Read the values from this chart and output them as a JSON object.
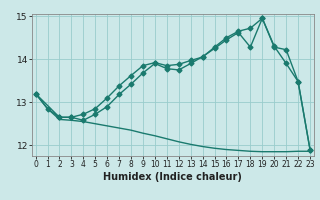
{
  "title": "",
  "xlabel": "Humidex (Indice chaleur)",
  "bg_color": "#cce8e8",
  "line_color": "#1a7a6e",
  "grid_color": "#99cccc",
  "xticks": [
    0,
    1,
    2,
    3,
    4,
    5,
    6,
    7,
    8,
    9,
    10,
    11,
    12,
    13,
    14,
    15,
    16,
    17,
    18,
    19,
    20,
    21,
    22,
    23
  ],
  "yticks": [
    12,
    13,
    14,
    15
  ],
  "ylim": [
    11.75,
    15.05
  ],
  "xlim": [
    -0.3,
    23.3
  ],
  "line1_x": [
    0,
    1,
    2,
    3,
    4,
    5,
    6,
    7,
    8,
    9,
    10,
    11,
    12,
    13,
    14,
    15,
    16,
    17,
    18,
    19,
    20,
    21,
    22,
    23
  ],
  "line1_y": [
    13.2,
    12.85,
    12.6,
    12.58,
    12.55,
    12.5,
    12.45,
    12.4,
    12.35,
    12.28,
    12.22,
    12.15,
    12.08,
    12.02,
    11.97,
    11.93,
    11.9,
    11.88,
    11.86,
    11.85,
    11.85,
    11.85,
    11.86,
    11.86
  ],
  "line2_x": [
    0,
    1,
    2,
    3,
    4,
    5,
    6,
    7,
    8,
    9,
    10,
    11,
    12,
    13,
    14,
    15,
    16,
    17,
    18,
    19,
    20,
    21,
    22,
    23
  ],
  "line2_y": [
    13.2,
    12.85,
    12.65,
    12.65,
    12.72,
    12.85,
    13.1,
    13.38,
    13.62,
    13.85,
    13.92,
    13.85,
    13.88,
    13.97,
    14.05,
    14.28,
    14.5,
    14.65,
    14.72,
    14.95,
    14.28,
    14.22,
    13.48,
    11.9
  ],
  "line3_x": [
    0,
    2,
    3,
    4,
    5,
    6,
    7,
    8,
    9,
    10,
    11,
    12,
    13,
    14,
    15,
    16,
    17,
    18,
    19,
    20,
    21,
    22,
    23
  ],
  "line3_y": [
    13.2,
    12.65,
    12.65,
    12.58,
    12.72,
    12.9,
    13.18,
    13.42,
    13.68,
    13.9,
    13.78,
    13.75,
    13.9,
    14.06,
    14.25,
    14.45,
    14.62,
    14.28,
    14.95,
    14.3,
    13.9,
    13.48,
    11.9
  ],
  "marker": "D",
  "markersize": 2.5,
  "linewidth": 1.0
}
